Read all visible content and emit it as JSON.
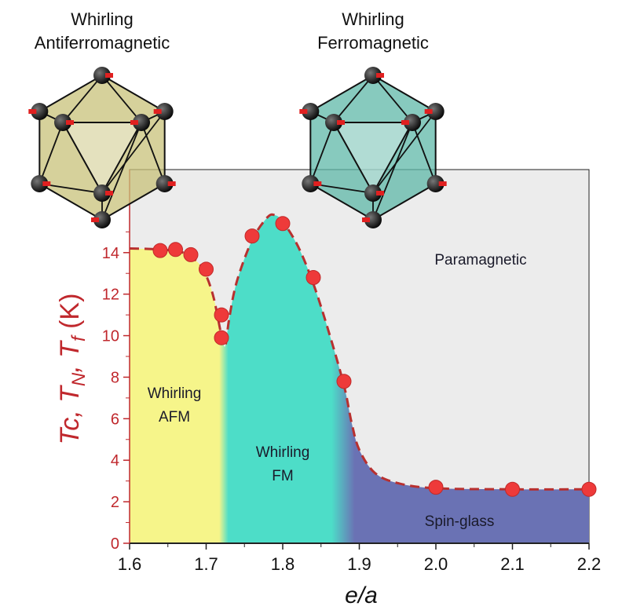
{
  "chart_data": {
    "type": "scatter",
    "title": "",
    "xlabel": "e/a",
    "ylabel_parts": [
      "T",
      "c",
      ", ",
      "T",
      "N",
      ", ",
      "T",
      "f",
      " (K)"
    ],
    "xlim": [
      1.6,
      2.2
    ],
    "ylim": [
      0,
      18
    ],
    "xticks": [
      "1.6",
      "1.7",
      "1.8",
      "1.9",
      "2.0",
      "2.1",
      "2.2"
    ],
    "xtick_values": [
      1.6,
      1.7,
      1.8,
      1.9,
      2.0,
      2.1,
      2.2
    ],
    "yticks": [
      "0",
      "2",
      "4",
      "6",
      "8",
      "10",
      "12",
      "14"
    ],
    "ytick_values": [
      0,
      2,
      4,
      6,
      8,
      10,
      12,
      14
    ],
    "points": [
      {
        "x": 1.64,
        "y": 14.1
      },
      {
        "x": 1.66,
        "y": 14.15
      },
      {
        "x": 1.68,
        "y": 13.9
      },
      {
        "x": 1.7,
        "y": 13.2
      },
      {
        "x": 1.72,
        "y": 11.0
      },
      {
        "x": 1.72,
        "y": 9.9
      },
      {
        "x": 1.76,
        "y": 14.8
      },
      {
        "x": 1.8,
        "y": 15.4
      },
      {
        "x": 1.84,
        "y": 12.8
      },
      {
        "x": 1.88,
        "y": 7.8
      },
      {
        "x": 2.0,
        "y": 2.7
      },
      {
        "x": 2.1,
        "y": 2.6
      },
      {
        "x": 2.2,
        "y": 2.6
      }
    ],
    "boundary": [
      [
        1.6,
        14.2
      ],
      [
        1.64,
        14.15
      ],
      [
        1.67,
        14.0
      ],
      [
        1.69,
        13.5
      ],
      [
        1.7,
        12.9
      ],
      [
        1.71,
        11.8
      ],
      [
        1.72,
        10.0
      ],
      [
        1.725,
        9.5
      ],
      [
        1.73,
        10.8
      ],
      [
        1.74,
        12.6
      ],
      [
        1.76,
        14.6
      ],
      [
        1.78,
        15.7
      ],
      [
        1.79,
        15.8
      ],
      [
        1.8,
        15.5
      ],
      [
        1.82,
        14.3
      ],
      [
        1.84,
        12.5
      ],
      [
        1.86,
        10.2
      ],
      [
        1.88,
        7.6
      ],
      [
        1.89,
        5.8
      ],
      [
        1.9,
        4.5
      ],
      [
        1.92,
        3.4
      ],
      [
        1.95,
        2.9
      ],
      [
        2.0,
        2.65
      ],
      [
        2.1,
        2.6
      ],
      [
        2.2,
        2.6
      ]
    ],
    "regions": [
      {
        "name": "Whirling AFM",
        "lines": [
          "Whirling",
          "AFM"
        ],
        "color": "#f6f58a",
        "x_range": [
          1.6,
          1.72
        ]
      },
      {
        "name": "Whirling FM",
        "lines": [
          "Whirling",
          "FM"
        ],
        "color": "#4dddc8",
        "x_range": [
          1.73,
          1.88
        ]
      },
      {
        "name": "Spin-glass",
        "lines": [
          "Spin-glass"
        ],
        "color": "#6a72b4",
        "x_range": [
          1.895,
          2.2
        ]
      },
      {
        "name": "Paramagnetic",
        "lines": [
          "Paramagnetic"
        ],
        "color": "#ececec"
      }
    ],
    "colors": {
      "point": "#ee3a3a",
      "line": "#b8302f",
      "axis_text": "#c0282d",
      "background": "#ececec"
    }
  },
  "structures": [
    {
      "title_lines": [
        "Whirling",
        "Antiferromagnetic"
      ],
      "fill": "#c8c27a"
    },
    {
      "title_lines": [
        "Whirling",
        "Ferromagnetic"
      ],
      "fill": "#5fb8a8"
    }
  ]
}
